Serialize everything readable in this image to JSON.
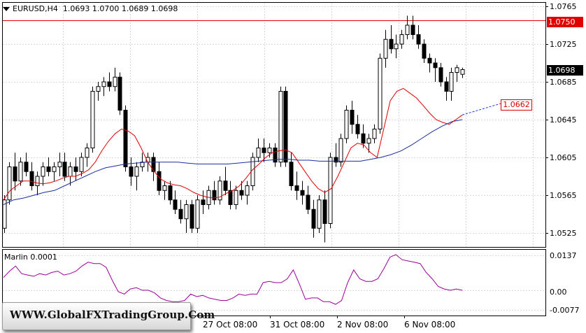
{
  "header": {
    "symbol": "EURUSD,H4",
    "open": "1.0693",
    "high": "1.0700",
    "low": "1.0689",
    "close": "1.0698"
  },
  "price_axis": {
    "ticks": [
      "1.0765",
      "1.0725",
      "1.0685",
      "1.0645",
      "1.0605",
      "1.0565",
      "1.0525"
    ],
    "resistance_label": "1.0750",
    "current_price_label": "1.0698",
    "target_label": "1.0662"
  },
  "time_axis": {
    "labels": [
      "27 Oct 08:00",
      "31 Oct 08:00",
      "2 Nov 08:00",
      "6 Nov 08:00"
    ]
  },
  "indicator": {
    "name": "Marlin 0.0001",
    "ticks": [
      "0.0137",
      "0.00",
      "-0.0077"
    ]
  },
  "watermark": {
    "text": "WWW.GlobalFXTradingGroup.Com"
  },
  "colors": {
    "bull": "#ffffff",
    "bear": "#000000",
    "fast_ma": "#e00000",
    "slow_ma": "#1a2fa0",
    "oscillator": "#9b009b",
    "resistance": "#e00000",
    "grid": "#d9d9d9"
  },
  "chart_data": [
    {
      "type": "candlestick",
      "title": "EURUSD,H4",
      "ylim": [
        1.0515,
        1.077
      ],
      "resistance_level": 1.075,
      "target_level": 1.0662,
      "candles": [
        [
          1.053,
          1.0565,
          1.0525,
          1.056
        ],
        [
          1.056,
          1.06,
          1.0555,
          1.0595
        ],
        [
          1.0595,
          1.061,
          1.057,
          1.058
        ],
        [
          1.058,
          1.0605,
          1.0575,
          1.06
        ],
        [
          1.06,
          1.061,
          1.0585,
          1.059
        ],
        [
          1.059,
          1.06,
          1.057,
          1.0575
        ],
        [
          1.0575,
          1.059,
          1.0565,
          1.0585
        ],
        [
          1.0585,
          1.06,
          1.0575,
          1.0595
        ],
        [
          1.0595,
          1.0605,
          1.0585,
          1.059
        ],
        [
          1.059,
          1.06,
          1.058,
          1.0595
        ],
        [
          1.0595,
          1.061,
          1.0585,
          1.06
        ],
        [
          1.06,
          1.061,
          1.058,
          1.0585
        ],
        [
          1.0585,
          1.06,
          1.0575,
          1.0595
        ],
        [
          1.0595,
          1.0605,
          1.058,
          1.059
        ],
        [
          1.059,
          1.061,
          1.0585,
          1.0605
        ],
        [
          1.0605,
          1.062,
          1.0595,
          1.0615
        ],
        [
          1.0615,
          1.068,
          1.061,
          1.0675
        ],
        [
          1.0675,
          1.0685,
          1.0665,
          1.068
        ],
        [
          1.068,
          1.069,
          1.067,
          1.0685
        ],
        [
          1.0685,
          1.0695,
          1.0675,
          1.068
        ],
        [
          1.068,
          1.07,
          1.0675,
          1.069
        ],
        [
          1.069,
          1.0695,
          1.065,
          1.0655
        ],
        [
          1.0655,
          1.066,
          1.059,
          1.0595
        ],
        [
          1.0595,
          1.0605,
          1.0575,
          1.0585
        ],
        [
          1.0585,
          1.06,
          1.057,
          1.0595
        ],
        [
          1.0595,
          1.061,
          1.059,
          1.06
        ],
        [
          1.06,
          1.061,
          1.059,
          1.0605
        ],
        [
          1.0605,
          1.061,
          1.058,
          1.059
        ],
        [
          1.059,
          1.06,
          1.0565,
          1.057
        ],
        [
          1.057,
          1.058,
          1.056,
          1.0575
        ],
        [
          1.0575,
          1.058,
          1.0555,
          1.056
        ],
        [
          1.056,
          1.057,
          1.0545,
          1.055
        ],
        [
          1.055,
          1.056,
          1.0535,
          1.054
        ],
        [
          1.054,
          1.056,
          1.0525,
          1.0555
        ],
        [
          1.0555,
          1.056,
          1.0525,
          1.053
        ],
        [
          1.053,
          1.0565,
          1.0525,
          1.056
        ],
        [
          1.056,
          1.057,
          1.0545,
          1.0555
        ],
        [
          1.0555,
          1.0575,
          1.055,
          1.057
        ],
        [
          1.057,
          1.058,
          1.0555,
          1.056
        ],
        [
          1.056,
          1.0585,
          1.0555,
          1.058
        ],
        [
          1.058,
          1.0595,
          1.0565,
          1.057
        ],
        [
          1.057,
          1.058,
          1.055,
          1.0555
        ],
        [
          1.0555,
          1.0575,
          1.055,
          1.057
        ],
        [
          1.057,
          1.058,
          1.056,
          1.0565
        ],
        [
          1.0565,
          1.058,
          1.0555,
          1.0575
        ],
        [
          1.0575,
          1.061,
          1.057,
          1.0605
        ],
        [
          1.0605,
          1.0625,
          1.06,
          1.0615
        ],
        [
          1.0615,
          1.0625,
          1.06,
          1.061
        ],
        [
          1.061,
          1.062,
          1.0605,
          1.0615
        ],
        [
          1.0615,
          1.062,
          1.0595,
          1.06
        ],
        [
          1.06,
          1.068,
          1.0595,
          1.0675
        ],
        [
          1.0675,
          1.068,
          1.0595,
          1.06
        ],
        [
          1.06,
          1.061,
          1.057,
          1.0575
        ],
        [
          1.0575,
          1.059,
          1.056,
          1.057
        ],
        [
          1.057,
          1.058,
          1.0555,
          1.0565
        ],
        [
          1.0565,
          1.0575,
          1.0545,
          1.055
        ],
        [
          1.055,
          1.056,
          1.052,
          1.053
        ],
        [
          1.053,
          1.0565,
          1.0525,
          1.056
        ],
        [
          1.056,
          1.057,
          1.0515,
          1.0535
        ],
        [
          1.0535,
          1.061,
          1.053,
          1.0605
        ],
        [
          1.0605,
          1.062,
          1.0595,
          1.06
        ],
        [
          1.06,
          1.063,
          1.0595,
          1.0625
        ],
        [
          1.0625,
          1.066,
          1.062,
          1.0655
        ],
        [
          1.0655,
          1.0665,
          1.063,
          1.064
        ],
        [
          1.064,
          1.065,
          1.0625,
          1.063
        ],
        [
          1.063,
          1.064,
          1.0615,
          1.062
        ],
        [
          1.062,
          1.063,
          1.061,
          1.0625
        ],
        [
          1.0625,
          1.064,
          1.062,
          1.0635
        ],
        [
          1.0635,
          1.0715,
          1.063,
          1.071
        ],
        [
          1.071,
          1.074,
          1.07,
          1.073
        ],
        [
          1.073,
          1.0745,
          1.0715,
          1.072
        ],
        [
          1.072,
          1.0735,
          1.071,
          1.0725
        ],
        [
          1.0725,
          1.074,
          1.072,
          1.0735
        ],
        [
          1.0735,
          1.0755,
          1.073,
          1.0745
        ],
        [
          1.0745,
          1.0755,
          1.073,
          1.0735
        ],
        [
          1.0735,
          1.0745,
          1.072,
          1.0725
        ],
        [
          1.0725,
          1.073,
          1.0705,
          1.071
        ],
        [
          1.071,
          1.0715,
          1.0695,
          1.0705
        ],
        [
          1.0705,
          1.071,
          1.0685,
          1.07
        ],
        [
          1.07,
          1.0705,
          1.068,
          1.0685
        ],
        [
          1.0685,
          1.069,
          1.0665,
          1.0675
        ],
        [
          1.0675,
          1.07,
          1.0665,
          1.0695
        ],
        [
          1.0695,
          1.0703,
          1.0685,
          1.07
        ],
        [
          1.0693,
          1.07,
          1.0689,
          1.0698
        ]
      ],
      "fast_ma": [
        1.056,
        1.057,
        1.0575,
        1.058,
        1.058,
        1.0578,
        1.0577,
        1.0578,
        1.058,
        1.0583,
        1.0585,
        1.0585,
        1.0588,
        1.0592,
        1.06,
        1.0612,
        1.0622,
        1.063,
        1.0635,
        1.0633,
        1.0628,
        1.0615,
        1.06,
        1.059,
        1.0582,
        1.0578,
        1.0576,
        1.0575,
        1.0572,
        1.0568,
        1.0565,
        1.0563,
        1.0562,
        1.0563,
        1.0567,
        1.057,
        1.0575,
        1.0583,
        1.0592,
        1.0598,
        1.0605,
        1.061,
        1.0612,
        1.0613,
        1.061,
        1.06,
        1.059,
        1.058,
        1.0572,
        1.0568,
        1.0572,
        1.0585,
        1.06,
        1.0615,
        1.062,
        1.0618,
        1.061,
        1.0605,
        1.0635,
        1.0665,
        1.0675,
        1.0678,
        1.0673,
        1.0668,
        1.066,
        1.0652,
        1.0645,
        1.0642,
        1.064,
        1.0645,
        1.065
      ],
      "slow_ma": [
        1.0555,
        1.056,
        1.0562,
        1.0565,
        1.0568,
        1.057,
        1.0575,
        1.058,
        1.0585,
        1.059,
        1.0594,
        1.0596,
        1.0598,
        1.0599,
        1.06,
        1.06,
        1.06,
        1.06,
        1.0599,
        1.0598,
        1.0598,
        1.0598,
        1.0598,
        1.0599,
        1.06,
        1.0601,
        1.0602,
        1.0603,
        1.0603,
        1.0602,
        1.0602,
        1.0601,
        1.0601,
        1.0601,
        1.0601,
        1.0601,
        1.0603,
        1.0605,
        1.0608,
        1.0612,
        1.0618,
        1.0625,
        1.0632,
        1.0638,
        1.0643,
        1.0645
      ],
      "fast_ma_extension": [
        1.065,
        1.0662
      ]
    },
    {
      "type": "line",
      "title": "Marlin 0.0001",
      "ylim": [
        -0.011,
        0.016
      ],
      "series": [
        {
          "values": [
            0.005,
            0.0075,
            0.0095,
            0.0065,
            0.006,
            0.0055,
            0.0065,
            0.006,
            0.007,
            0.0075,
            0.006,
            0.0065,
            0.0075,
            0.0095,
            0.011,
            0.0105,
            0.0105,
            0.009,
            0.004,
            -0.0005,
            -0.0015,
            0.0005,
            0.001,
            0.0,
            0.0,
            -0.001,
            -0.003,
            -0.004,
            -0.0045,
            -0.0045,
            -0.004,
            -0.0015,
            -0.0025,
            -0.002,
            -0.003,
            -0.0035,
            -0.004,
            -0.004,
            -0.003,
            -0.0015,
            -0.002,
            -0.0015,
            -0.0015,
            0.003,
            0.0035,
            0.003,
            0.003,
            0.0045,
            0.008,
            0.0025,
            -0.0035,
            -0.003,
            -0.003,
            -0.0045,
            -0.0045,
            -0.0055,
            -0.004,
            0.003,
            0.008,
            0.0045,
            0.0035,
            0.0035,
            0.0045,
            0.0085,
            0.013,
            0.014,
            0.012,
            0.0115,
            0.011,
            0.0105,
            0.007,
            0.0045,
            0.0015,
            0.0005,
            0.0,
            0.0005,
            0.0
          ]
        }
      ]
    }
  ]
}
